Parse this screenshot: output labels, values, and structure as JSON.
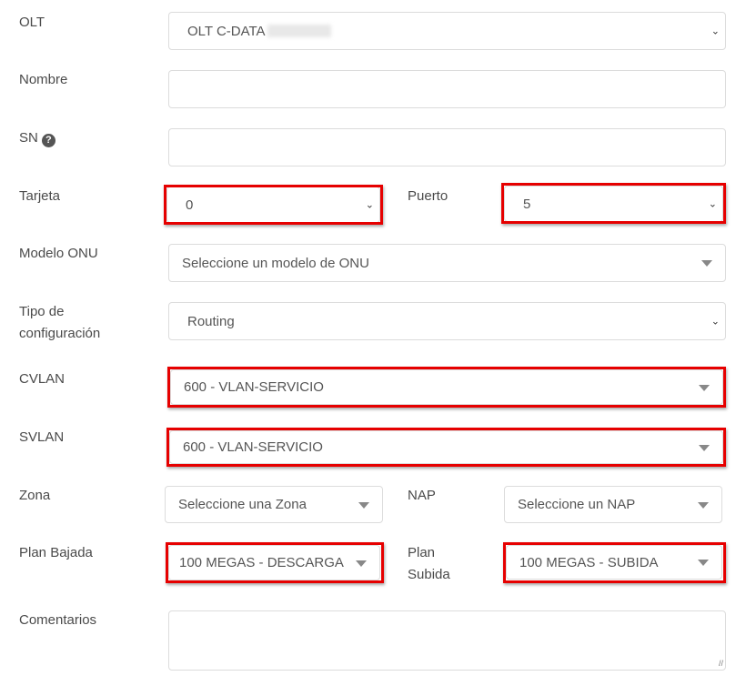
{
  "fields": {
    "olt": {
      "label": "OLT",
      "value": "OLT C-DATA"
    },
    "nombre": {
      "label": "Nombre",
      "value": ""
    },
    "sn": {
      "label": "SN",
      "help_icon": "question-circle-icon",
      "help_glyph": "?",
      "value": ""
    },
    "tarjeta": {
      "label": "Tarjeta",
      "value": "0"
    },
    "puerto": {
      "label": "Puerto",
      "value": "5"
    },
    "modelo_onu": {
      "label": "Modelo ONU",
      "placeholder": "Seleccione un modelo de ONU"
    },
    "tipo_config": {
      "label_line1": "Tipo de",
      "label_line2": "configuración",
      "value": "Routing"
    },
    "cvlan": {
      "label": "CVLAN",
      "value": "600 - VLAN-SERVICIO"
    },
    "svlan": {
      "label": "SVLAN",
      "value": "600 - VLAN-SERVICIO"
    },
    "zona": {
      "label": "Zona",
      "placeholder": "Seleccione una Zona"
    },
    "nap": {
      "label": "NAP",
      "placeholder": "Seleccione un NAP"
    },
    "plan_bajada": {
      "label": "Plan Bajada",
      "value": "100 MEGAS - DESCARGA"
    },
    "plan_subida": {
      "label_line1": "Plan",
      "label_line2": "Subida",
      "value": "100 MEGAS - SUBIDA"
    },
    "comentarios": {
      "label": "Comentarios",
      "value": ""
    }
  },
  "highlight_color": "#e60000",
  "chevron_glyph": "⌄"
}
